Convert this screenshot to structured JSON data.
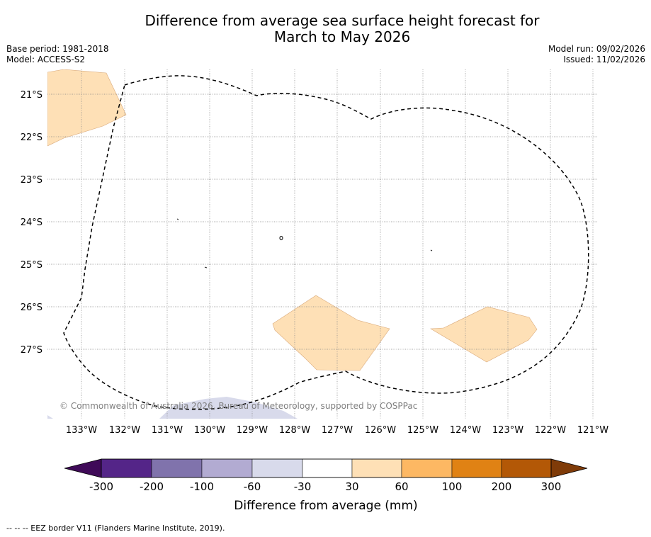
{
  "title": {
    "line1": "Difference from average sea surface height forecast for",
    "line2": "March to May 2026"
  },
  "meta": {
    "base_period": "Base period: 1981-2018",
    "model": "Model: ACCESS-S2",
    "model_run": "Model run: 09/02/2026",
    "issued": "Issued: 11/02/2026"
  },
  "map": {
    "lon_labels": [
      "133°W",
      "132°W",
      "131°W",
      "130°W",
      "129°W",
      "128°W",
      "127°W",
      "126°W",
      "125°W",
      "124°W",
      "123°W",
      "122°W",
      "121°W"
    ],
    "lat_labels": [
      "21°S",
      "22°S",
      "23°S",
      "24°S",
      "25°S",
      "26°S",
      "27°S"
    ],
    "copyright": "© Commonwealth of Australia 2026, Bureau of Meteorology, supported by COSPPac"
  },
  "colorbar": {
    "tick_labels": [
      "-300",
      "-200",
      "-100",
      "-60",
      "-30",
      "30",
      "60",
      "100",
      "200",
      "300"
    ],
    "colors": [
      "#3f0a58",
      "#542588",
      "#8073ac",
      "#b2abd2",
      "#d8daeb",
      "#ffffff",
      "#fee0b6",
      "#fdb863",
      "#e08214",
      "#b35806",
      "#7f3b08"
    ],
    "label": "Difference from average (mm)"
  },
  "footer": {
    "legend_text": "--  --  -- EEZ border V11 (Flanders Marine Institute, 2019)."
  }
}
